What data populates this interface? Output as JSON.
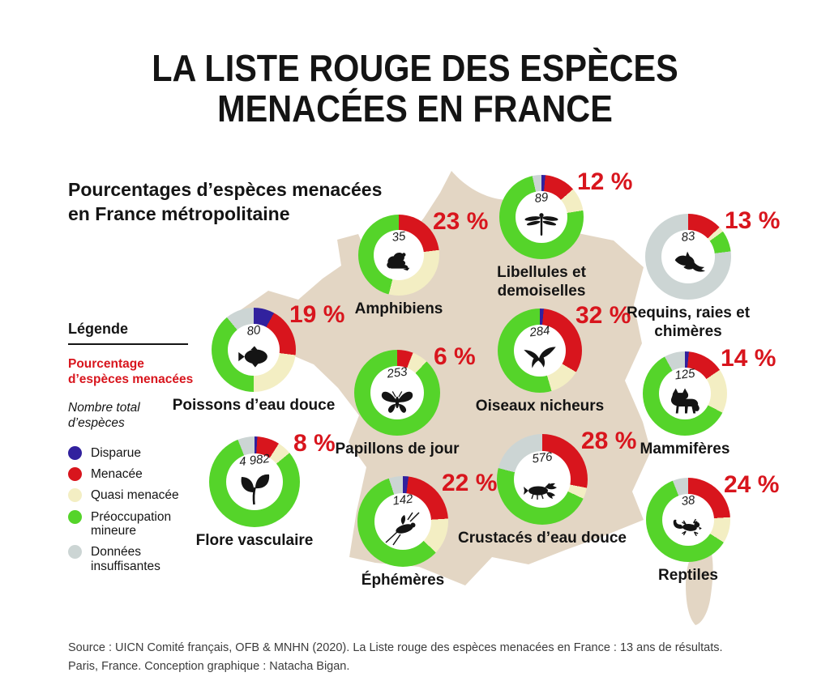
{
  "page": {
    "title_line1": "LA LISTE ROUGE DES ESPÈCES",
    "title_line2": "MENACÉES EN FRANCE",
    "subtitle_line1": "Pourcentages d’espèces menacées",
    "subtitle_line2": "en France métropolitaine",
    "source_line1": "Source : UICN Comité français, OFB & MNHN (2020). La Liste rouge des espèces menacées en France : 13 ans de résultats.",
    "source_line2": "Paris, France. Conception graphique : Natacha Bigan."
  },
  "legend": {
    "heading": "Légende",
    "percent_label": "Pourcentage\nd’espèces menacées",
    "total_label": "Nombre total\nd’espèces",
    "categories": [
      {
        "key": "disparue",
        "label": "Disparue",
        "color": "#31219e"
      },
      {
        "key": "menacee",
        "label": "Menacée",
        "color": "#d8151d"
      },
      {
        "key": "quasi_menacee",
        "label": "Quasi menacée",
        "color": "#f3eec3"
      },
      {
        "key": "preoccupation_mineure",
        "label": "Préoccupation\nmineure",
        "color": "#55d42a"
      },
      {
        "key": "donnees_insuffisantes",
        "label": "Données\ninsuffisantes",
        "color": "#ccd5d4"
      }
    ]
  },
  "colors": {
    "accent_red": "#d8151d",
    "map_fill": "#e3d6c4"
  },
  "chart_data": {
    "type": "pie",
    "title": "La liste rouge des espèces menacées en France",
    "subtitle": "Pourcentages d’espèces menacées en France métropolitaine",
    "legend_position": "left",
    "categories": [
      "Disparue",
      "Menacée",
      "Quasi menacée",
      "Préoccupation mineure",
      "Données insuffisantes"
    ],
    "note": "segments_pct = share of each donut, clockwise from 12 o'clock, order: disparue, menacee, quasi_menacee, preoccupation_mineure, donnees_insuffisantes",
    "groups": [
      {
        "id": "amphibiens",
        "label": "Amphibiens",
        "total": "35",
        "percent_threatened": "23 %",
        "icon": "frog-icon",
        "segments_pct": {
          "disparue": 0,
          "menacee": 23,
          "quasi_menacee": 31,
          "preoccupation_mineure": 46,
          "donnees_insuffisantes": 0
        }
      },
      {
        "id": "libellules",
        "label": "Libellules et\ndemoiselles",
        "total": "89",
        "percent_threatened": "12 %",
        "icon": "dragonfly-icon",
        "segments_pct": {
          "disparue": 1.5,
          "menacee": 12,
          "quasi_menacee": 9,
          "preoccupation_mineure": 74,
          "donnees_insuffisantes": 3.5
        }
      },
      {
        "id": "requins",
        "label": "Requins, raies et\nchimères",
        "total": "83",
        "percent_threatened": "13 %",
        "icon": "shark-icon",
        "segments_pct": {
          "disparue": 0,
          "menacee": 13,
          "quasi_menacee": 2,
          "preoccupation_mineure": 8,
          "donnees_insuffisantes": 77
        }
      },
      {
        "id": "poissons",
        "label": "Poissons d’eau douce",
        "total": "80",
        "percent_threatened": "19 %",
        "icon": "fish-icon",
        "segments_pct": {
          "disparue": 8,
          "menacee": 19,
          "quasi_menacee": 23,
          "preoccupation_mineure": 39,
          "donnees_insuffisantes": 11
        }
      },
      {
        "id": "oiseaux",
        "label": "Oiseaux nicheurs",
        "total": "284",
        "percent_threatened": "32 %",
        "icon": "eagle-icon",
        "segments_pct": {
          "disparue": 1.5,
          "menacee": 32,
          "quasi_menacee": 12,
          "preoccupation_mineure": 54.5,
          "donnees_insuffisantes": 0
        }
      },
      {
        "id": "papillons",
        "label": "Papillons de jour",
        "total": "253",
        "percent_threatened": "6 %",
        "icon": "butterfly-icon",
        "segments_pct": {
          "disparue": 0,
          "menacee": 6,
          "quasi_menacee": 6,
          "preoccupation_mineure": 88,
          "donnees_insuffisantes": 0
        }
      },
      {
        "id": "mammiferes",
        "label": "Mammifères",
        "total": "125",
        "percent_threatened": "14 %",
        "icon": "fox-icon",
        "segments_pct": {
          "disparue": 1.5,
          "menacee": 14,
          "quasi_menacee": 17,
          "preoccupation_mineure": 59.5,
          "donnees_insuffisantes": 8
        }
      },
      {
        "id": "flore",
        "label": "Flore vasculaire",
        "total": "4 982",
        "percent_threatened": "8 %",
        "icon": "leaf-icon",
        "segments_pct": {
          "disparue": 1,
          "menacee": 8,
          "quasi_menacee": 5,
          "preoccupation_mineure": 80,
          "donnees_insuffisantes": 6
        }
      },
      {
        "id": "ephemeres",
        "label": "Éphémères",
        "total": "142",
        "percent_threatened": "22 %",
        "icon": "mayfly-icon",
        "segments_pct": {
          "disparue": 2,
          "menacee": 22,
          "quasi_menacee": 13,
          "preoccupation_mineure": 58,
          "donnees_insuffisantes": 5
        }
      },
      {
        "id": "crustaces",
        "label": "Crustacés d’eau douce",
        "total": "576",
        "percent_threatened": "28 %",
        "icon": "crayfish-icon",
        "segments_pct": {
          "disparue": 0,
          "menacee": 28,
          "quasi_menacee": 4,
          "preoccupation_mineure": 47,
          "donnees_insuffisantes": 21
        }
      },
      {
        "id": "reptiles",
        "label": "Reptiles",
        "total": "38",
        "percent_threatened": "24 %",
        "icon": "gecko-icon",
        "segments_pct": {
          "disparue": 0,
          "menacee": 24,
          "quasi_menacee": 10,
          "preoccupation_mineure": 60,
          "donnees_insuffisantes": 6
        }
      }
    ]
  }
}
